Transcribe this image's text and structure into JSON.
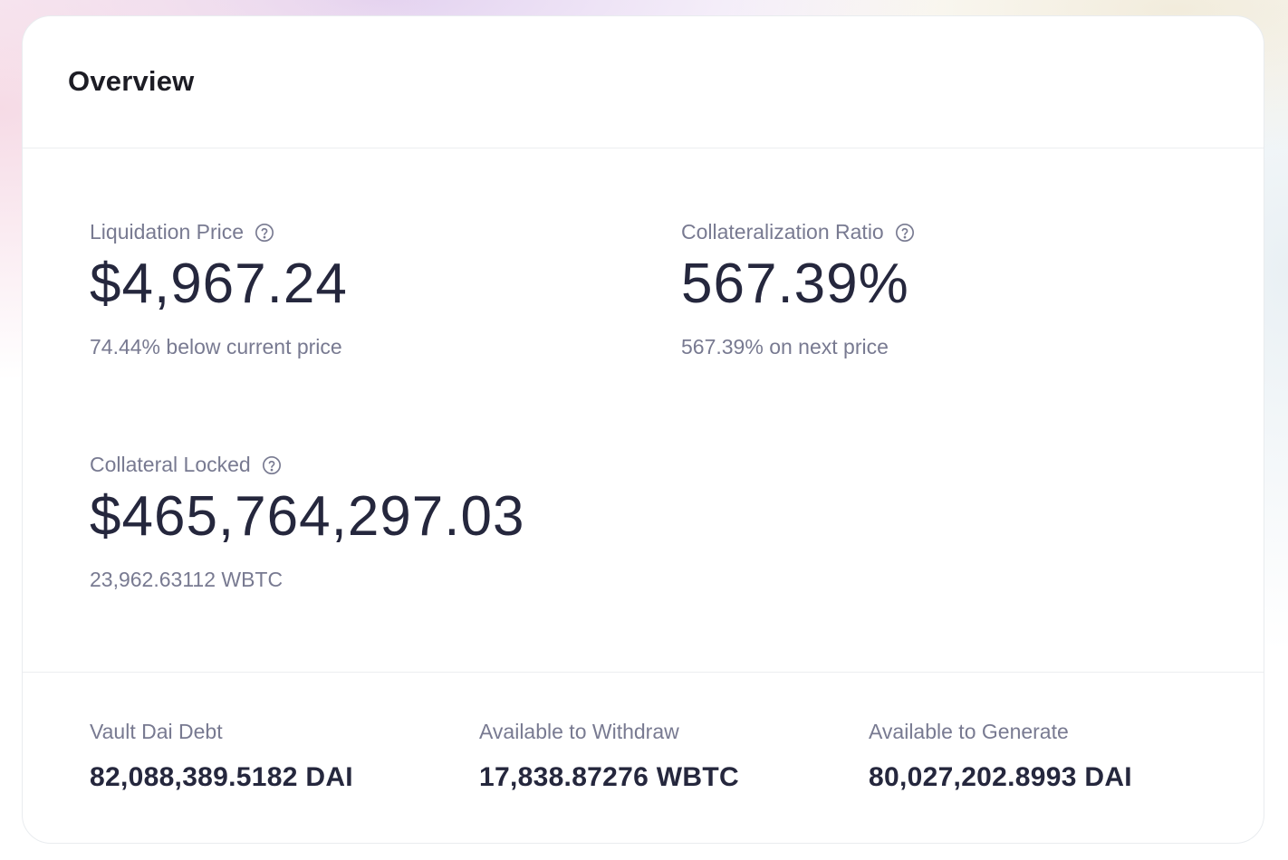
{
  "overview": {
    "title": "Overview"
  },
  "metrics": {
    "liquidation_price": {
      "label": "Liquidation Price",
      "value": "$4,967.24",
      "sub": "74.44% below current price"
    },
    "collateralization_ratio": {
      "label": "Collateralization Ratio",
      "value": "567.39%",
      "sub": "567.39% on next price"
    },
    "collateral_locked": {
      "label": "Collateral Locked",
      "value": "$465,764,297.03",
      "sub": "23,962.63112 WBTC"
    }
  },
  "stats": {
    "vault_dai_debt": {
      "label": "Vault Dai Debt",
      "value": "82,088,389.5182 DAI"
    },
    "available_to_withdraw": {
      "label": "Available to Withdraw",
      "value": "17,838.87276 WBTC"
    },
    "available_to_generate": {
      "label": "Available to Generate",
      "value": "80,027,202.8993 DAI"
    }
  },
  "icons": {
    "help": "question-circle-icon"
  },
  "colors": {
    "text_primary": "#25273d",
    "text_secondary": "#787a91",
    "border": "#eceef0"
  }
}
